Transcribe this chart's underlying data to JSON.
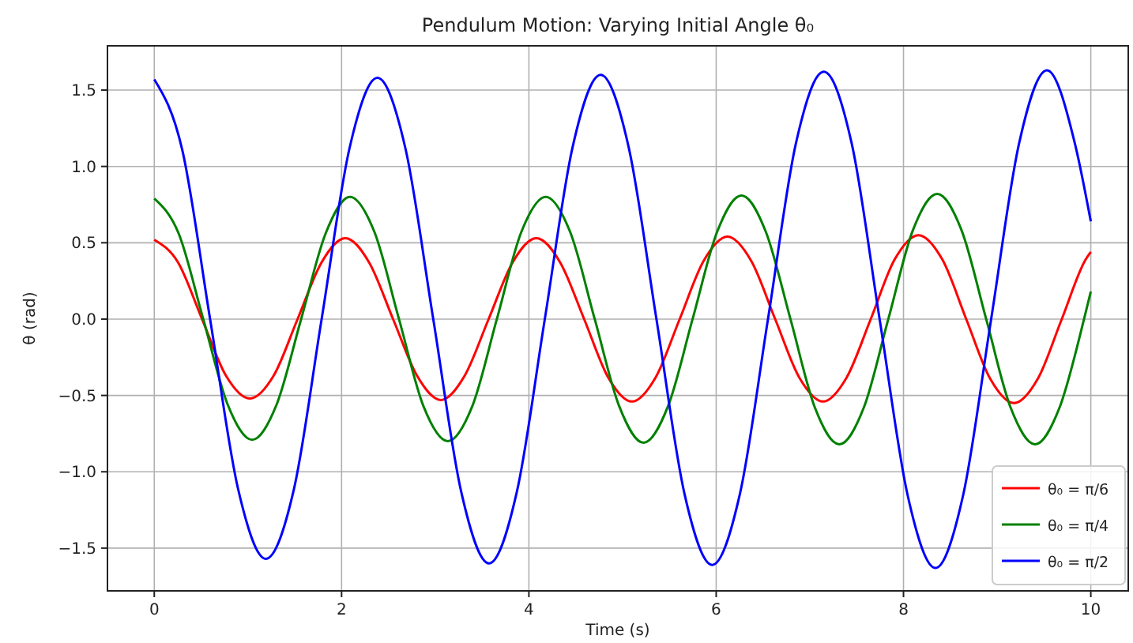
{
  "chart_data": {
    "type": "line",
    "title": "Pendulum Motion: Varying Initial Angle θ₀",
    "xlabel": "Time (s)",
    "ylabel": "θ (rad)",
    "xlim": [
      -0.5,
      10.4
    ],
    "ylim": [
      -1.78,
      1.79
    ],
    "xticks": [
      0,
      2,
      4,
      6,
      8,
      10
    ],
    "yticks": [
      {
        "value": -1.5,
        "label": "−1.5"
      },
      {
        "value": -1,
        "label": "−1.0"
      },
      {
        "value": -0.5,
        "label": "−0.5"
      },
      {
        "value": 0,
        "label": "0.0"
      },
      {
        "value": 0.5,
        "label": "0.5"
      },
      {
        "value": 1,
        "label": "1.0"
      },
      {
        "value": 1.5,
        "label": "1.5"
      }
    ],
    "grid": true,
    "legend": "bottom right",
    "line_style": "solid",
    "series": [
      {
        "name": "θ₀ = π/6",
        "color": "#ff0000",
        "x": [
          0,
          0.255,
          0.51,
          0.765,
          1.02,
          1.275,
          1.53,
          1.785,
          2.04,
          2.295,
          2.55,
          2.805,
          3.06,
          3.315,
          3.57,
          3.825,
          4.08,
          4.335,
          4.59,
          4.845,
          5.1,
          5.355,
          5.61,
          5.865,
          6.12,
          6.375,
          6.63,
          6.885,
          7.14,
          7.395,
          7.65,
          7.905,
          8.16,
          8.415,
          8.67,
          8.925,
          9.18,
          9.435,
          9.69,
          9.945,
          10
        ],
        "values": [
          0.52,
          0.37,
          0,
          -0.37,
          -0.52,
          -0.37,
          0,
          0.37,
          0.53,
          0.37,
          0,
          -0.37,
          -0.53,
          -0.37,
          0,
          0.37,
          0.53,
          0.37,
          0,
          -0.38,
          -0.54,
          -0.38,
          0,
          0.38,
          0.54,
          0.38,
          0,
          -0.38,
          -0.54,
          -0.38,
          0,
          0.39,
          0.55,
          0.39,
          0,
          -0.39,
          -0.55,
          -0.39,
          0,
          0.39,
          0.44
        ]
      },
      {
        "name": "θ₀ = π/4",
        "color": "#008000",
        "x": [
          0,
          0.261,
          0.523,
          0.784,
          1.045,
          1.306,
          1.568,
          1.829,
          2.09,
          2.351,
          2.613,
          2.874,
          3.135,
          3.396,
          3.658,
          3.919,
          4.18,
          4.441,
          4.703,
          4.964,
          5.225,
          5.486,
          5.748,
          6.009,
          6.27,
          6.531,
          6.793,
          7.054,
          7.315,
          7.576,
          7.838,
          8.099,
          8.36,
          8.621,
          8.883,
          9.144,
          9.405,
          9.666,
          9.928,
          10
        ],
        "values": [
          0.79,
          0.56,
          0,
          -0.56,
          -0.79,
          -0.56,
          0,
          0.56,
          0.8,
          0.57,
          0,
          -0.57,
          -0.8,
          -0.57,
          0,
          0.57,
          0.8,
          0.57,
          0,
          -0.57,
          -0.81,
          -0.57,
          0,
          0.57,
          0.81,
          0.57,
          0,
          -0.58,
          -0.82,
          -0.58,
          0,
          0.58,
          0.82,
          0.58,
          0,
          -0.58,
          -0.82,
          -0.58,
          0,
          0.18
        ]
      },
      {
        "name": "θ₀ = π/2",
        "color": "#0000ff",
        "x": [
          0,
          0.298,
          0.596,
          0.894,
          1.192,
          1.489,
          1.787,
          2.085,
          2.383,
          2.681,
          2.979,
          3.277,
          3.575,
          3.872,
          4.17,
          4.468,
          4.766,
          5.064,
          5.362,
          5.66,
          5.958,
          6.255,
          6.553,
          6.851,
          7.149,
          7.447,
          7.745,
          8.043,
          8.341,
          8.638,
          8.936,
          9.234,
          9.532,
          9.83,
          10
        ],
        "values": [
          1.57,
          1.11,
          0,
          -1.11,
          -1.57,
          -1.12,
          0,
          1.12,
          1.58,
          1.12,
          0,
          -1.13,
          -1.6,
          -1.13,
          0,
          1.13,
          1.6,
          1.13,
          0,
          -1.14,
          -1.61,
          -1.14,
          0,
          1.15,
          1.62,
          1.15,
          0,
          -1.15,
          -1.63,
          -1.15,
          0,
          1.15,
          1.63,
          1.15,
          0.64
        ]
      }
    ]
  }
}
